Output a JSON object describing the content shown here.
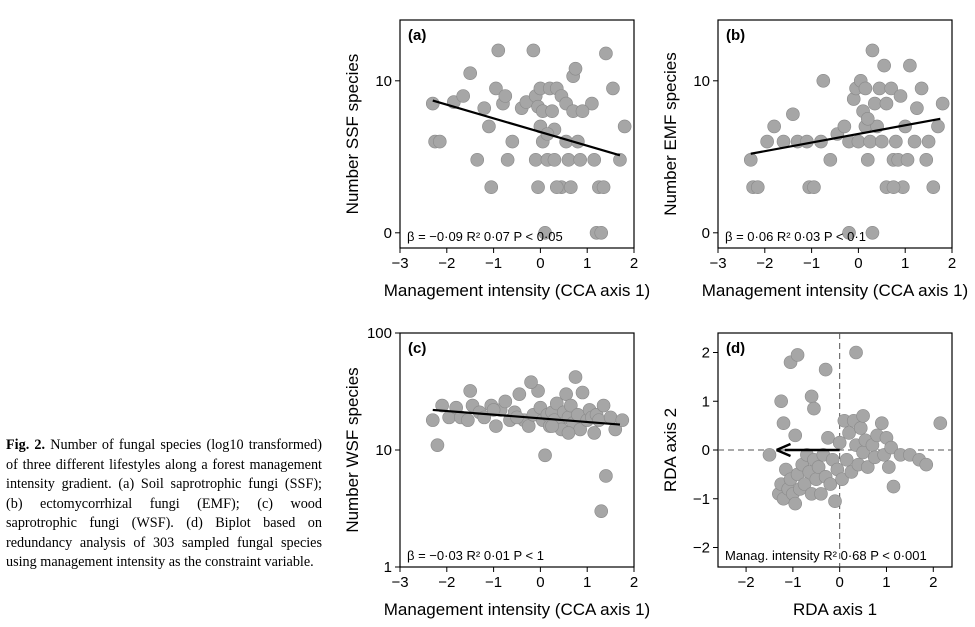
{
  "caption": {
    "label": "Fig. 2.",
    "text": "Number of fungal species (log10 transformed) of three different lifestyles along a forest management intensity gradient. (a) Soil saprotrophic fungi (SSF); (b) ectomycorrhizal fungi (EMF); (c) wood saprotrophic fungi (WSF). (d) Biplot based on redundancy analysis of 303 sampled fungal species using management intensity as the constraint variable."
  },
  "chart_data": [
    {
      "type": "scatter",
      "panel": "(a)",
      "xlabel": "Management intensity (CCA axis 1)",
      "ylabel": "Number SSF species",
      "xlim": [
        -3,
        2
      ],
      "ylim": [
        -1,
        14
      ],
      "xticks": [
        -3,
        -2,
        -1,
        0,
        1,
        2
      ],
      "yticks": [
        0,
        10
      ],
      "annotation": "β = −0·09 R² 0·07 P < 0·05",
      "fit_line": {
        "x": [
          -2.3,
          1.7
        ],
        "y": [
          8.7,
          5.1
        ]
      },
      "points": [
        [
          -2.3,
          8.5
        ],
        [
          -2.25,
          6
        ],
        [
          -2.15,
          6
        ],
        [
          -1.85,
          8.6
        ],
        [
          -1.65,
          9
        ],
        [
          -1.5,
          10.5
        ],
        [
          -1.35,
          4.8
        ],
        [
          -1.2,
          8.2
        ],
        [
          -1.1,
          7
        ],
        [
          -1.05,
          3
        ],
        [
          -0.95,
          9.5
        ],
        [
          -0.8,
          8.5
        ],
        [
          -0.75,
          9
        ],
        [
          -0.7,
          4.8
        ],
        [
          -0.4,
          8.2
        ],
        [
          -0.3,
          8.6
        ],
        [
          -0.15,
          12
        ],
        [
          -0.1,
          9
        ],
        [
          -0.05,
          8.3
        ],
        [
          0.05,
          8
        ],
        [
          -0.1,
          4.8
        ],
        [
          -0.05,
          3
        ],
        [
          0,
          9.5
        ],
        [
          0,
          7
        ],
        [
          0.05,
          6
        ],
        [
          0.1,
          0
        ],
        [
          0.15,
          4.8
        ],
        [
          0.2,
          9.5
        ],
        [
          0.25,
          8
        ],
        [
          0.3,
          6.8
        ],
        [
          0.3,
          4.8
        ],
        [
          0.35,
          9.5
        ],
        [
          0.45,
          9
        ],
        [
          0.45,
          3
        ],
        [
          0.55,
          8.5
        ],
        [
          0.55,
          6
        ],
        [
          0.6,
          4.8
        ],
        [
          0.7,
          10.3
        ],
        [
          0.7,
          8
        ],
        [
          0.75,
          10.8
        ],
        [
          0.8,
          6
        ],
        [
          0.85,
          4.8
        ],
        [
          0.65,
          3
        ],
        [
          0.35,
          3
        ],
        [
          1.1,
          8.5
        ],
        [
          1.15,
          4.8
        ],
        [
          1.2,
          0
        ],
        [
          1.25,
          3
        ],
        [
          1.3,
          0
        ],
        [
          1.35,
          3
        ],
        [
          1.4,
          11.8
        ],
        [
          1.55,
          9.5
        ],
        [
          1.7,
          4.8
        ],
        [
          1.8,
          7
        ],
        [
          -0.9,
          12
        ],
        [
          0.9,
          8
        ],
        [
          0.15,
          6.5
        ],
        [
          -0.6,
          6
        ]
      ]
    },
    {
      "type": "scatter",
      "panel": "(b)",
      "xlabel": "Management intensity (CCA axis 1)",
      "ylabel": "Number EMF species",
      "xlim": [
        -3,
        2
      ],
      "ylim": [
        -1,
        14
      ],
      "xticks": [
        -3,
        -2,
        -1,
        0,
        1,
        2
      ],
      "yticks": [
        0,
        10
      ],
      "annotation": "β = 0·06 R² 0·03 P < 0·1",
      "fit_line": {
        "x": [
          -2.3,
          1.75
        ],
        "y": [
          5.2,
          7.5
        ]
      },
      "points": [
        [
          -2.3,
          4.8
        ],
        [
          -2.25,
          3
        ],
        [
          -2.15,
          3
        ],
        [
          -1.95,
          6
        ],
        [
          -1.8,
          7
        ],
        [
          -1.6,
          6
        ],
        [
          -1.4,
          7.8
        ],
        [
          -1.3,
          6
        ],
        [
          -1.1,
          6
        ],
        [
          -1.05,
          3
        ],
        [
          -0.95,
          3
        ],
        [
          -0.8,
          6
        ],
        [
          -0.75,
          10
        ],
        [
          -0.6,
          4.8
        ],
        [
          -0.45,
          6.5
        ],
        [
          -0.3,
          7
        ],
        [
          -0.2,
          6
        ],
        [
          -0.1,
          8.8
        ],
        [
          -0.05,
          9.5
        ],
        [
          0,
          6
        ],
        [
          0.05,
          10
        ],
        [
          0.1,
          8
        ],
        [
          0.15,
          9.5
        ],
        [
          0.15,
          7
        ],
        [
          0.2,
          4.8
        ],
        [
          0.25,
          6
        ],
        [
          0.3,
          12
        ],
        [
          0.35,
          8.5
        ],
        [
          0.4,
          7
        ],
        [
          0.45,
          9.5
        ],
        [
          0.5,
          6
        ],
        [
          0.55,
          11
        ],
        [
          0.6,
          8.5
        ],
        [
          0.6,
          3
        ],
        [
          0.7,
          9.5
        ],
        [
          0.75,
          4.8
        ],
        [
          0.8,
          6
        ],
        [
          0.85,
          4.8
        ],
        [
          0.9,
          9
        ],
        [
          0.95,
          3
        ],
        [
          1.0,
          7
        ],
        [
          1.05,
          4.8
        ],
        [
          1.1,
          11
        ],
        [
          1.2,
          6
        ],
        [
          1.25,
          8.2
        ],
        [
          1.35,
          9.5
        ],
        [
          1.45,
          4.8
        ],
        [
          1.5,
          6
        ],
        [
          1.6,
          3
        ],
        [
          1.7,
          7
        ],
        [
          1.8,
          8.5
        ],
        [
          -0.2,
          0
        ],
        [
          0.3,
          0
        ],
        [
          0.75,
          3
        ],
        [
          0.2,
          7.5
        ]
      ]
    },
    {
      "type": "scatter",
      "panel": "(c)",
      "xlabel": "Management intensity (CCA axis 1)",
      "ylabel": "Number WSF species",
      "xlim": [
        -3,
        2
      ],
      "ylim": [
        1,
        100
      ],
      "yscale": "log",
      "xticks": [
        -3,
        -2,
        -1,
        0,
        1,
        2
      ],
      "yticks": [
        1,
        10,
        100
      ],
      "annotation": "β = −0·03 R² 0·01 P < 1",
      "fit_line": {
        "x": [
          -2.3,
          1.7
        ],
        "y": [
          22,
          16.5
        ]
      },
      "points": [
        [
          -2.3,
          18
        ],
        [
          -2.2,
          11
        ],
        [
          -2.1,
          24
        ],
        [
          -1.95,
          19
        ],
        [
          -1.8,
          23
        ],
        [
          -1.7,
          19
        ],
        [
          -1.55,
          18
        ],
        [
          -1.45,
          24
        ],
        [
          -1.3,
          21
        ],
        [
          -1.2,
          19
        ],
        [
          -1.05,
          24
        ],
        [
          -0.95,
          16
        ],
        [
          -0.85,
          22
        ],
        [
          -0.75,
          26
        ],
        [
          -0.65,
          18
        ],
        [
          -0.55,
          21
        ],
        [
          -0.45,
          30
        ],
        [
          -0.35,
          18
        ],
        [
          -0.25,
          16
        ],
        [
          -0.15,
          20
        ],
        [
          -0.05,
          32
        ],
        [
          0,
          23
        ],
        [
          0.05,
          18
        ],
        [
          0.1,
          9
        ],
        [
          0.15,
          20
        ],
        [
          0.2,
          16
        ],
        [
          0.25,
          21
        ],
        [
          0.3,
          18
        ],
        [
          0.35,
          25
        ],
        [
          0.4,
          16
        ],
        [
          0.45,
          15
        ],
        [
          0.5,
          21
        ],
        [
          0.55,
          30
        ],
        [
          0.6,
          19
        ],
        [
          0.65,
          24
        ],
        [
          0.7,
          17
        ],
        [
          0.75,
          42
        ],
        [
          0.8,
          20
        ],
        [
          0.85,
          15
        ],
        [
          0.9,
          31
        ],
        [
          1.0,
          18
        ],
        [
          1.05,
          22
        ],
        [
          1.1,
          19
        ],
        [
          1.15,
          14
        ],
        [
          1.2,
          20
        ],
        [
          1.25,
          18
        ],
        [
          1.3,
          3
        ],
        [
          1.35,
          24
        ],
        [
          1.4,
          6
        ],
        [
          1.5,
          19
        ],
        [
          1.6,
          15
        ],
        [
          1.75,
          18
        ],
        [
          -1.0,
          22
        ],
        [
          -0.5,
          19
        ],
        [
          0.25,
          16
        ],
        [
          0.6,
          14
        ],
        [
          -0.2,
          38
        ],
        [
          -1.5,
          32
        ]
      ]
    },
    {
      "type": "scatter",
      "panel": "(d)",
      "xlabel": "RDA axis 1",
      "ylabel": "RDA axis 2",
      "xlim": [
        -2.6,
        2.4
      ],
      "ylim": [
        -2.4,
        2.4
      ],
      "xticks": [
        -2,
        -1,
        0,
        1,
        2
      ],
      "yticks": [
        -2,
        -1,
        0,
        1,
        2
      ],
      "annotation": "Manag. intensity R² 0·68 P < 0·001",
      "biplot_arrow": {
        "x1": 0,
        "y1": 0,
        "x2": -1.35,
        "y2": 0
      },
      "points": [
        [
          -1.5,
          -0.1
        ],
        [
          -1.3,
          -0.9
        ],
        [
          -1.25,
          -0.7
        ],
        [
          -1.2,
          -1.0
        ],
        [
          -1.15,
          -0.4
        ],
        [
          -1.1,
          -0.8
        ],
        [
          -1.05,
          -0.6
        ],
        [
          -1.0,
          -0.9
        ],
        [
          -0.95,
          -1.1
        ],
        [
          -0.9,
          -0.5
        ],
        [
          -0.85,
          -0.8
        ],
        [
          -0.8,
          -0.3
        ],
        [
          -0.75,
          -0.7
        ],
        [
          -0.7,
          -0.1
        ],
        [
          -0.65,
          -0.45
        ],
        [
          -0.6,
          -0.9
        ],
        [
          -0.55,
          -0.2
        ],
        [
          -0.5,
          -0.6
        ],
        [
          -0.45,
          -0.35
        ],
        [
          -0.4,
          -0.9
        ],
        [
          -0.35,
          -0.1
        ],
        [
          -0.3,
          -0.55
        ],
        [
          -0.25,
          0.25
        ],
        [
          -0.2,
          -0.7
        ],
        [
          -0.15,
          -0.2
        ],
        [
          -0.1,
          -1.05
        ],
        [
          -0.05,
          -0.4
        ],
        [
          0,
          0.15
        ],
        [
          0.05,
          -0.6
        ],
        [
          0.1,
          0.6
        ],
        [
          0.15,
          -0.2
        ],
        [
          0.2,
          0.35
        ],
        [
          0.25,
          -0.45
        ],
        [
          0.3,
          0.6
        ],
        [
          0.35,
          0.1
        ],
        [
          0.4,
          -0.3
        ],
        [
          0.45,
          0.45
        ],
        [
          0.5,
          -0.05
        ],
        [
          0.55,
          0.2
        ],
        [
          0.6,
          -0.35
        ],
        [
          0.7,
          0.1
        ],
        [
          0.75,
          -0.15
        ],
        [
          0.8,
          0.3
        ],
        [
          0.9,
          0.55
        ],
        [
          0.95,
          -0.1
        ],
        [
          1.0,
          0.25
        ],
        [
          1.05,
          -0.35
        ],
        [
          1.1,
          0.05
        ],
        [
          1.15,
          -0.75
        ],
        [
          1.3,
          -0.1
        ],
        [
          1.5,
          -0.1
        ],
        [
          1.7,
          -0.2
        ],
        [
          1.85,
          -0.3
        ],
        [
          2.15,
          0.55
        ],
        [
          -1.05,
          1.8
        ],
        [
          -0.9,
          1.95
        ],
        [
          -0.6,
          1.1
        ],
        [
          -0.3,
          1.65
        ],
        [
          -0.55,
          0.85
        ],
        [
          0.35,
          2.0
        ],
        [
          -1.25,
          1.0
        ],
        [
          -0.95,
          0.3
        ],
        [
          -1.2,
          0.55
        ],
        [
          0.5,
          0.7
        ]
      ]
    }
  ]
}
